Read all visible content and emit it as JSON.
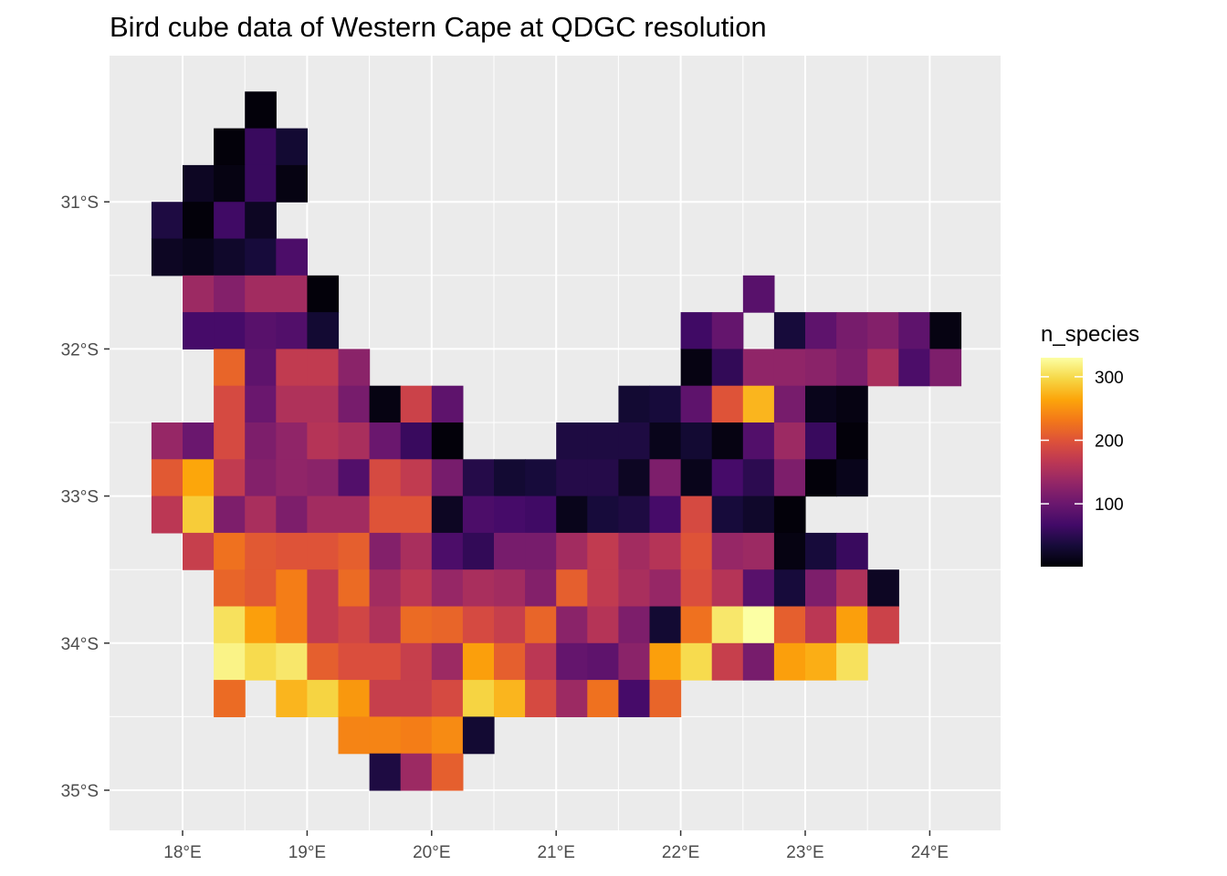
{
  "chart_data": {
    "type": "heatmap",
    "title": "Bird cube data of Western Cape at QDGC resolution",
    "xlabel": "",
    "ylabel": "",
    "x_ticks": [
      "18°E",
      "19°E",
      "20°E",
      "21°E",
      "22°E",
      "23°E",
      "24°E"
    ],
    "y_ticks": [
      "31°S",
      "32°S",
      "33°S",
      "34°S",
      "35°S"
    ],
    "x_tick_values": [
      18,
      19,
      20,
      21,
      22,
      23,
      24
    ],
    "y_tick_values": [
      31,
      32,
      33,
      34,
      35
    ],
    "xlim": [
      17.5,
      24.6
    ],
    "ylim": [
      30.0,
      35.2
    ],
    "cell_size": 0.25,
    "grid": true,
    "legend": {
      "title": "n_species",
      "position": "right",
      "labels": [
        "300",
        "200",
        "100"
      ],
      "label_values": [
        300,
        200,
        100
      ],
      "range": [
        1,
        330
      ],
      "palette": "inferno"
    },
    "lon_start": 17.75,
    "lat_start": 30.25,
    "columns": [
      "17.75-18.0",
      "18.0-18.25",
      "18.25-18.5",
      "18.5-18.75",
      "18.75-19.0",
      "19.0-19.25",
      "19.25-19.5",
      "19.5-19.75",
      "19.75-20.0",
      "20.0-20.25",
      "20.25-20.5",
      "20.5-20.75",
      "20.75-21.0",
      "21.0-21.25",
      "21.25-21.5",
      "21.5-21.75",
      "21.75-22.0",
      "22.0-22.25",
      "22.25-22.5",
      "22.5-22.75",
      "22.75-23.0",
      "23.0-23.25",
      "23.25-23.5",
      "23.5-23.75",
      "23.75-24.0",
      "24.0-24.25"
    ],
    "rows": [
      {
        "lat": "30.25-30.5",
        "values": [
          null,
          null,
          null,
          5,
          null,
          null,
          null,
          null,
          null,
          null,
          null,
          null,
          null,
          null,
          null,
          null,
          null,
          null,
          null,
          null,
          null,
          null,
          null,
          null,
          null,
          null
        ]
      },
      {
        "lat": "30.5-30.75",
        "values": [
          null,
          null,
          5,
          60,
          30,
          null,
          null,
          null,
          null,
          null,
          null,
          null,
          null,
          null,
          null,
          null,
          null,
          null,
          null,
          null,
          null,
          null,
          null,
          null,
          null,
          null
        ]
      },
      {
        "lat": "30.75-31.0",
        "values": [
          null,
          20,
          10,
          60,
          10,
          null,
          null,
          null,
          null,
          null,
          null,
          null,
          null,
          null,
          null,
          null,
          null,
          null,
          null,
          null,
          null,
          null,
          null,
          null,
          null,
          null
        ]
      },
      {
        "lat": "31.0-31.25",
        "values": [
          40,
          5,
          65,
          20,
          null,
          null,
          null,
          null,
          null,
          null,
          null,
          null,
          null,
          null,
          null,
          null,
          null,
          null,
          null,
          null,
          null,
          null,
          null,
          null,
          null,
          null
        ]
      },
      {
        "lat": "31.25-31.5",
        "values": [
          20,
          15,
          25,
          35,
          75,
          null,
          null,
          null,
          null,
          null,
          null,
          null,
          null,
          null,
          null,
          null,
          null,
          null,
          null,
          null,
          null,
          null,
          null,
          null,
          null,
          null
        ]
      },
      {
        "lat": "31.5-31.75",
        "values": [
          null,
          140,
          120,
          145,
          145,
          5,
          null,
          null,
          null,
          null,
          null,
          null,
          null,
          null,
          null,
          null,
          null,
          null,
          null,
          85,
          null,
          null,
          null,
          null,
          null,
          null
        ]
      },
      {
        "lat": "31.75-32.0",
        "values": [
          null,
          70,
          70,
          85,
          80,
          30,
          null,
          null,
          null,
          null,
          null,
          null,
          null,
          null,
          null,
          null,
          null,
          65,
          95,
          null,
          35,
          90,
          110,
          120,
          90,
          10
        ]
      },
      {
        "lat": "32.0-32.25",
        "values": [
          null,
          null,
          215,
          90,
          170,
          170,
          125,
          null,
          null,
          null,
          null,
          null,
          null,
          null,
          null,
          null,
          null,
          10,
          55,
          130,
          130,
          125,
          115,
          150,
          75,
          115
        ]
      },
      {
        "lat": "32.25-32.5",
        "values": [
          null,
          null,
          190,
          100,
          155,
          155,
          110,
          10,
          180,
          90,
          null,
          null,
          null,
          null,
          null,
          30,
          35,
          90,
          200,
          275,
          110,
          15,
          10,
          null,
          null,
          null
        ]
      },
      {
        "lat": "32.5-32.75",
        "values": [
          135,
          100,
          190,
          115,
          130,
          160,
          150,
          100,
          60,
          5,
          null,
          null,
          null,
          40,
          40,
          40,
          15,
          30,
          10,
          80,
          140,
          60,
          5,
          null,
          null,
          null
        ]
      },
      {
        "lat": "32.75-33.0",
        "values": [
          205,
          265,
          170,
          120,
          130,
          125,
          80,
          190,
          170,
          110,
          45,
          30,
          35,
          45,
          45,
          20,
          115,
          15,
          70,
          50,
          115,
          5,
          15,
          null,
          null,
          null
        ]
      },
      {
        "lat": "33.0-33.25",
        "values": [
          165,
          290,
          115,
          150,
          115,
          145,
          145,
          200,
          200,
          20,
          75,
          70,
          65,
          15,
          35,
          40,
          70,
          190,
          35,
          25,
          5,
          null,
          null,
          null,
          null,
          null
        ]
      },
      {
        "lat": "33.25-33.5",
        "values": [
          null,
          175,
          225,
          205,
          200,
          200,
          210,
          120,
          150,
          75,
          55,
          110,
          110,
          145,
          170,
          145,
          160,
          200,
          135,
          140,
          10,
          35,
          60,
          null,
          null,
          null
        ]
      },
      {
        "lat": "33.5-33.75",
        "values": [
          null,
          null,
          215,
          205,
          235,
          170,
          220,
          145,
          165,
          135,
          150,
          145,
          120,
          210,
          170,
          150,
          135,
          195,
          160,
          85,
          35,
          115,
          155,
          20,
          null,
          null
        ]
      },
      {
        "lat": "33.75-34.0",
        "values": [
          null,
          null,
          305,
          260,
          235,
          170,
          185,
          155,
          220,
          215,
          190,
          175,
          215,
          125,
          160,
          115,
          30,
          225,
          310,
          330,
          210,
          165,
          260,
          180,
          null,
          null
        ]
      },
      {
        "lat": "34.0-34.25",
        "values": [
          null,
          null,
          320,
          300,
          310,
          210,
          195,
          195,
          175,
          140,
          260,
          210,
          165,
          95,
          90,
          125,
          260,
          300,
          175,
          110,
          260,
          270,
          305,
          null,
          null,
          null
        ]
      },
      {
        "lat": "34.25-34.5",
        "values": [
          null,
          null,
          220,
          null,
          275,
          295,
          255,
          175,
          175,
          190,
          295,
          275,
          190,
          140,
          225,
          70,
          215,
          null,
          null,
          null,
          null,
          null,
          null,
          null,
          null,
          null
        ]
      },
      {
        "lat": "34.5-34.75",
        "values": [
          null,
          null,
          null,
          null,
          null,
          null,
          240,
          240,
          235,
          245,
          30,
          null,
          null,
          null,
          null,
          null,
          null,
          null,
          null,
          null,
          null,
          null,
          null,
          null,
          null,
          null
        ]
      },
      {
        "lat": "34.75-35.0",
        "values": [
          null,
          null,
          null,
          null,
          null,
          null,
          null,
          40,
          140,
          210,
          null,
          null,
          null,
          null,
          null,
          null,
          null,
          null,
          null,
          null,
          null,
          null,
          null,
          null,
          null,
          null
        ]
      }
    ]
  }
}
